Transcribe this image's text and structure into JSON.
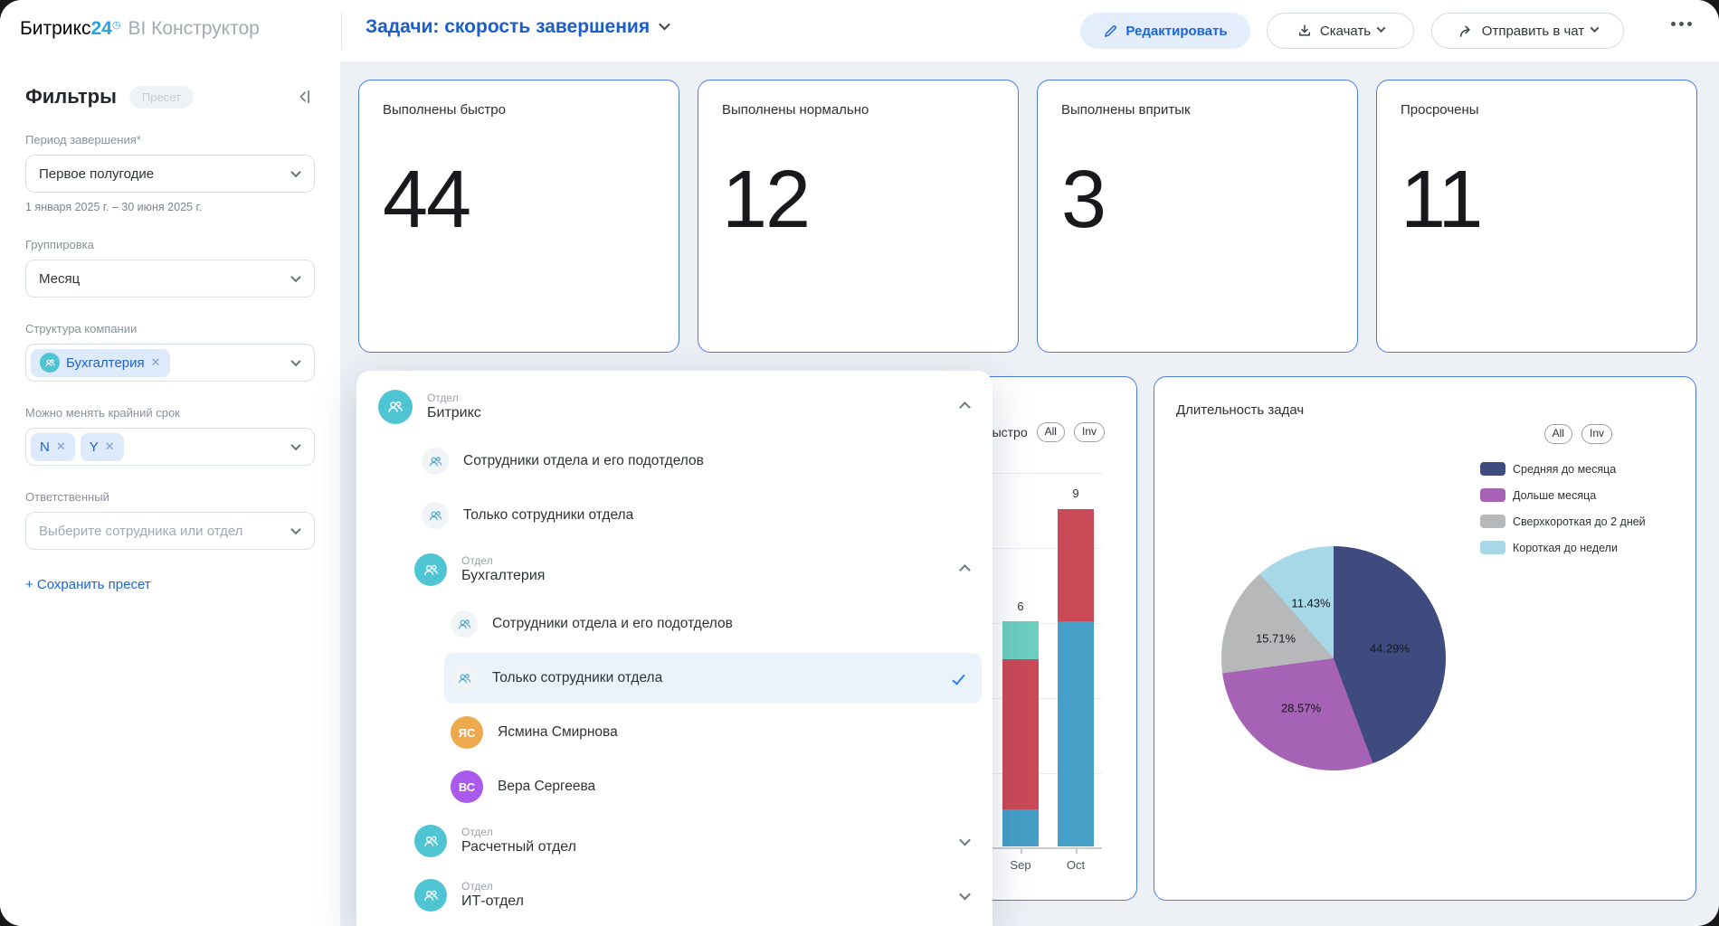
{
  "topbar": {
    "brand": "Битрикс",
    "brand_number": "24",
    "product": "BI Конструктор",
    "dashboard_title": "Задачи: скорость завершения",
    "edit_button": "Редактировать",
    "download_button": "Скачать",
    "send_to_chat_button": "Отправить в чат"
  },
  "sidebar": {
    "heading": "Фильтры",
    "preset_badge": "Пресет",
    "period_label": "Период завершения*",
    "period_value": "Первое полугодие",
    "period_hint": "1 января 2025 г. – 30 июня 2025 г.",
    "grouping_label": "Группировка",
    "grouping_value": "Месяц",
    "structure_label": "Структура компании",
    "structure_tag": "Бухгалтерия",
    "deadline_label": "Можно менять крайний срок",
    "deadline_tag_1": "N",
    "deadline_tag_2": "Y",
    "responsible_label": "Ответственный",
    "responsible_placeholder": "Выберите сотрудника или отдел",
    "save_preset_link": "+ Сохранить пресет"
  },
  "kpis": [
    {
      "label": "Выполнены быстро",
      "value": "44"
    },
    {
      "label": "Выполнены нормально",
      "value": "12"
    },
    {
      "label": "Выполнены впритык",
      "value": "3"
    },
    {
      "label": "Просрочены",
      "value": "11"
    }
  ],
  "dropdown": {
    "type_label": "Отдел",
    "rows": [
      {
        "kind": "dept",
        "level": 0,
        "name": "Битрикс",
        "chevron": "up"
      },
      {
        "kind": "option",
        "level": 1,
        "name": "Сотрудники отдела и его подотделов"
      },
      {
        "kind": "option",
        "level": 1,
        "name": "Только сотрудники отдела"
      },
      {
        "kind": "dept",
        "level": 1,
        "name": "Бухгалтерия",
        "chevron": "up"
      },
      {
        "kind": "option",
        "level": 2,
        "name": "Сотрудники отдела и его подотделов"
      },
      {
        "kind": "option",
        "level": 2,
        "name": "Только сотрудники отдела",
        "selected": true
      },
      {
        "kind": "person",
        "level": 2,
        "name": "Ясмина Смирнова",
        "initials": "ЯС",
        "color": "#eda94c"
      },
      {
        "kind": "person",
        "level": 2,
        "name": "Вера Сергеева",
        "initials": "ВС",
        "color": "#a959ec"
      },
      {
        "kind": "dept",
        "level": 1,
        "name": "Расчетный отдел",
        "chevron": "down"
      },
      {
        "kind": "dept",
        "level": 1,
        "name": "ИТ-отдел",
        "chevron": "down"
      }
    ]
  },
  "bar_card": {
    "title_visible": "быстро",
    "toggle_all": "All",
    "toggle_inv": "Inv"
  },
  "pie_card": {
    "title": "Длительность задач",
    "toggle_all": "All",
    "toggle_inv": "Inv",
    "legend": [
      {
        "label": "Средняя до месяца",
        "color": "#3d4b7e"
      },
      {
        "label": "Дольше месяца",
        "color": "#a662b5"
      },
      {
        "label": "Сверхкороткая до 2 дней",
        "color": "#b6b8ba"
      },
      {
        "label": "Короткая до недели",
        "color": "#a6d8e8"
      }
    ],
    "pct_labels": [
      "44.29%",
      "28.57%",
      "15.71%",
      "11.43%"
    ]
  },
  "chart_data": [
    {
      "type": "bar",
      "stacked": true,
      "title_visible": "быстро",
      "ylim": [
        0,
        10
      ],
      "gridline_step": 2,
      "bars": [
        {
          "x": "Sep",
          "total": 6,
          "segments": [
            {
              "color": "#459fc6",
              "value": 1
            },
            {
              "color": "#cb4a58",
              "value": 4
            },
            {
              "color": "#6ccfc0",
              "value": 1
            }
          ]
        },
        {
          "x": "Oct",
          "total": 9,
          "segments": [
            {
              "color": "#459fc6",
              "value": 6
            },
            {
              "color": "#cb4a58",
              "value": 3
            }
          ]
        }
      ]
    },
    {
      "type": "pie",
      "title": "Длительность задач",
      "start_angle_deg": 0,
      "direction": "clockwise",
      "slices": [
        {
          "label": "Средняя до месяца",
          "pct": 44.29,
          "color": "#3d4b7e"
        },
        {
          "label": "Дольше месяца",
          "pct": 28.57,
          "color": "#a662b5"
        },
        {
          "label": "Сверхкороткая до 2 дней",
          "pct": 15.71,
          "color": "#b6b8ba"
        },
        {
          "label": "Короткая до недели",
          "pct": 11.43,
          "color": "#a6d8e8"
        }
      ]
    }
  ]
}
